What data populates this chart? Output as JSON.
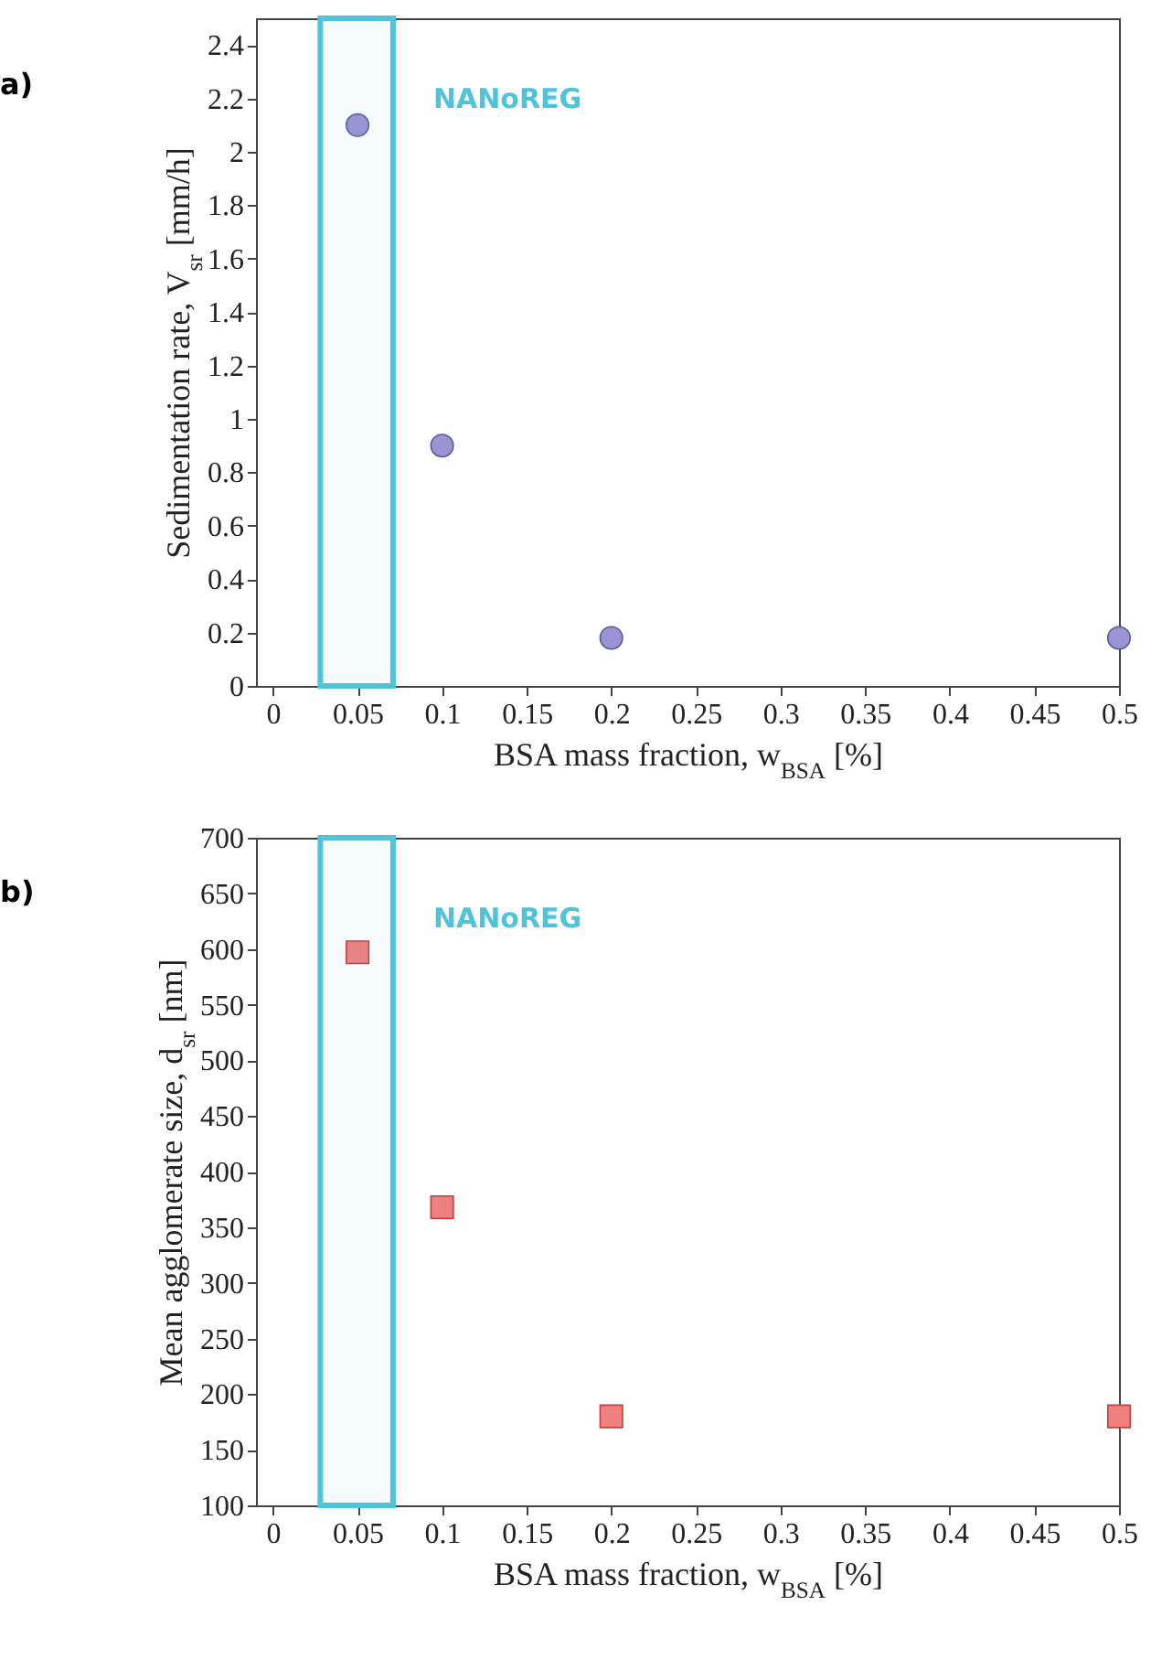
{
  "chart_data": [
    {
      "type": "scatter",
      "title": "a)",
      "xlabel": "BSA mass fraction, w$_{BSA}$ [%]",
      "ylabel": "Sedimentation rate, V$_{sr}$ [mm/h]",
      "x": [
        0.05,
        0.1,
        0.2,
        0.5
      ],
      "series": [
        {
          "color": "#9b93d3",
          "values": [
            2.1,
            0.9,
            0.18,
            0.18
          ]
        }
      ],
      "xlim": [
        -0.01,
        0.5
      ],
      "xticks": [
        0,
        0.05,
        0.1,
        0.15,
        0.2,
        0.25,
        0.3,
        0.35,
        0.4,
        0.45,
        0.5
      ],
      "ylim": [
        0,
        2.5
      ],
      "yticks": [
        0,
        0.2,
        0.4,
        0.6,
        0.8,
        1,
        1.2,
        1.4,
        1.6,
        1.8,
        2,
        2.2,
        2.4
      ],
      "bands": [
        {
          "axis": "x",
          "from": 0.028,
          "to": 0.071,
          "label": "NANoREG",
          "color": "#4fc3d9"
        }
      ],
      "marker": "circle",
      "grid": false
    },
    {
      "type": "scatter",
      "title": "b)",
      "xlabel": "BSA mass fraction, w$_{BSA}$ [%]",
      "ylabel": "Mean agglomerate size, d$_{sr}$ [nm]",
      "x": [
        0.05,
        0.1,
        0.2,
        0.5
      ],
      "series": [
        {
          "color": "#f08080",
          "values": [
            597,
            368,
            180,
            180
          ]
        }
      ],
      "xlim": [
        -0.01,
        0.5
      ],
      "xticks": [
        0,
        0.05,
        0.1,
        0.15,
        0.2,
        0.25,
        0.3,
        0.35,
        0.4,
        0.45,
        0.5
      ],
      "ylim": [
        100,
        700
      ],
      "yticks": [
        100,
        150,
        200,
        250,
        300,
        350,
        400,
        450,
        500,
        550,
        600,
        650,
        700
      ],
      "bands": [
        {
          "axis": "x",
          "from": 0.028,
          "to": 0.071,
          "label": "NANoREG",
          "color": "#4fc3d9"
        }
      ],
      "marker": "square",
      "grid": false
    }
  ]
}
